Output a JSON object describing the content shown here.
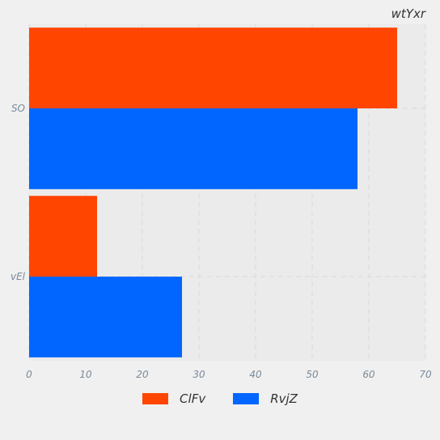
{
  "chart_data": {
    "type": "bar",
    "orientation": "horizontal",
    "title": "wtYxr",
    "categories": [
      "SO",
      "vEl"
    ],
    "series": [
      {
        "name": "ClFv",
        "values": [
          65,
          12
        ],
        "color": "#ff4500"
      },
      {
        "name": "RvjZ",
        "values": [
          58,
          27
        ],
        "color": "#0066ff"
      }
    ],
    "xlim": [
      0,
      70
    ],
    "xticks": [
      0,
      10,
      20,
      30,
      40,
      50,
      60,
      70
    ],
    "grid": true,
    "legend_position": "bottom"
  }
}
